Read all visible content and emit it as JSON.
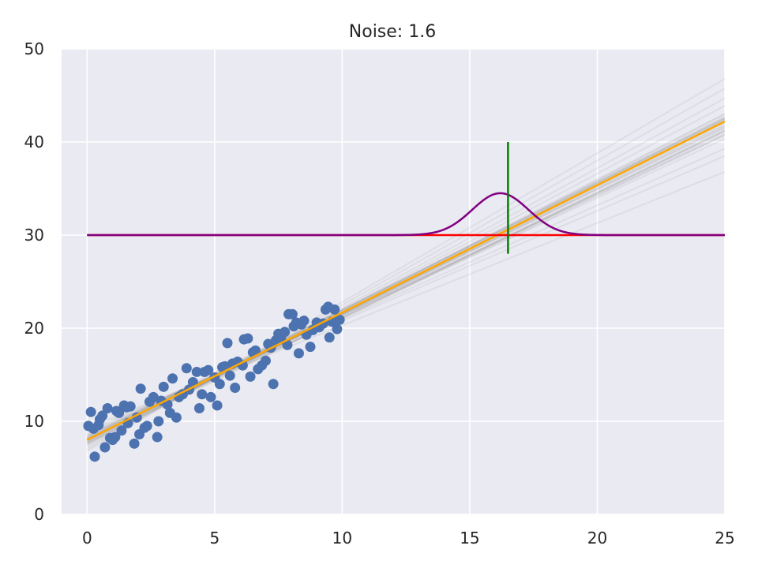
{
  "chart_data": {
    "type": "scatter",
    "title": "Noise: 1.6",
    "xlabel": "",
    "ylabel": "",
    "xlim": [
      -1,
      25
    ],
    "ylim": [
      0,
      50
    ],
    "x_ticks": [
      0,
      5,
      10,
      15,
      20,
      25
    ],
    "y_ticks": [
      0,
      10,
      20,
      30,
      40,
      50
    ],
    "grid": true,
    "colors": {
      "background": "#eaeaf2",
      "grid": "#ffffff",
      "points": "#4c72b0",
      "fit": "#ffa500",
      "samples": "#808080",
      "threshold": "#ff0000",
      "marker": "#008000",
      "density": "#800080"
    },
    "points": [
      [
        0.05,
        9.5
      ],
      [
        0.15,
        11.0
      ],
      [
        0.25,
        9.2
      ],
      [
        0.3,
        6.2
      ],
      [
        0.45,
        9.6
      ],
      [
        0.5,
        10.2
      ],
      [
        0.6,
        10.6
      ],
      [
        0.7,
        7.2
      ],
      [
        0.8,
        11.4
      ],
      [
        0.9,
        8.2
      ],
      [
        1.0,
        8.0
      ],
      [
        1.1,
        8.3
      ],
      [
        1.15,
        11.1
      ],
      [
        1.25,
        10.9
      ],
      [
        1.35,
        9.0
      ],
      [
        1.45,
        11.7
      ],
      [
        1.55,
        11.5
      ],
      [
        1.6,
        9.8
      ],
      [
        1.7,
        11.6
      ],
      [
        1.85,
        7.6
      ],
      [
        1.95,
        10.4
      ],
      [
        2.05,
        8.6
      ],
      [
        2.1,
        13.5
      ],
      [
        2.25,
        9.3
      ],
      [
        2.35,
        9.5
      ],
      [
        2.45,
        12.1
      ],
      [
        2.6,
        12.6
      ],
      [
        2.75,
        8.3
      ],
      [
        2.8,
        10.0
      ],
      [
        2.9,
        12.2
      ],
      [
        3.0,
        13.7
      ],
      [
        3.15,
        11.8
      ],
      [
        3.25,
        10.9
      ],
      [
        3.35,
        14.6
      ],
      [
        3.5,
        10.4
      ],
      [
        3.6,
        12.6
      ],
      [
        3.75,
        12.9
      ],
      [
        3.9,
        15.7
      ],
      [
        4.0,
        13.4
      ],
      [
        4.15,
        14.2
      ],
      [
        4.3,
        15.3
      ],
      [
        4.4,
        11.4
      ],
      [
        4.5,
        12.9
      ],
      [
        4.6,
        15.3
      ],
      [
        4.75,
        15.5
      ],
      [
        4.85,
        12.6
      ],
      [
        5.0,
        14.7
      ],
      [
        5.1,
        11.7
      ],
      [
        5.2,
        14.0
      ],
      [
        5.3,
        15.8
      ],
      [
        5.4,
        15.9
      ],
      [
        5.5,
        18.4
      ],
      [
        5.6,
        14.9
      ],
      [
        5.7,
        16.2
      ],
      [
        5.8,
        13.6
      ],
      [
        5.9,
        16.4
      ],
      [
        6.1,
        16.0
      ],
      [
        6.15,
        18.8
      ],
      [
        6.3,
        18.9
      ],
      [
        6.4,
        14.8
      ],
      [
        6.5,
        17.4
      ],
      [
        6.6,
        17.6
      ],
      [
        6.7,
        15.6
      ],
      [
        6.85,
        16.0
      ],
      [
        7.0,
        16.5
      ],
      [
        7.1,
        18.3
      ],
      [
        7.2,
        17.9
      ],
      [
        7.3,
        14.0
      ],
      [
        7.4,
        18.7
      ],
      [
        7.5,
        19.4
      ],
      [
        7.6,
        19.0
      ],
      [
        7.75,
        19.6
      ],
      [
        7.85,
        18.2
      ],
      [
        7.9,
        21.5
      ],
      [
        8.05,
        21.5
      ],
      [
        8.1,
        20.2
      ],
      [
        8.2,
        20.6
      ],
      [
        8.3,
        17.3
      ],
      [
        8.4,
        20.4
      ],
      [
        8.5,
        20.8
      ],
      [
        8.6,
        19.3
      ],
      [
        8.75,
        18.0
      ],
      [
        8.85,
        19.8
      ],
      [
        9.0,
        20.6
      ],
      [
        9.1,
        20.1
      ],
      [
        9.25,
        20.5
      ],
      [
        9.35,
        22.0
      ],
      [
        9.45,
        22.3
      ],
      [
        9.5,
        19.0
      ],
      [
        9.6,
        20.7
      ],
      [
        9.7,
        22.0
      ],
      [
        9.8,
        19.9
      ],
      [
        9.9,
        20.9
      ]
    ],
    "fit_line": {
      "x": [
        0,
        25
      ],
      "y": [
        8.0,
        42.2
      ]
    },
    "sample_lines": [
      [
        8.4,
        1.3
      ],
      [
        7.6,
        1.4
      ],
      [
        8.1,
        1.34
      ],
      [
        7.9,
        1.38
      ],
      [
        8.2,
        1.36
      ],
      [
        7.8,
        1.37
      ],
      [
        8.3,
        1.33
      ],
      [
        7.7,
        1.39
      ],
      [
        8.0,
        1.35
      ],
      [
        8.5,
        1.29
      ],
      [
        7.5,
        1.42
      ],
      [
        8.1,
        1.38
      ],
      [
        7.9,
        1.33
      ],
      [
        8.6,
        1.27
      ],
      [
        7.4,
        1.46
      ],
      [
        8.8,
        1.22
      ],
      [
        7.2,
        1.5
      ],
      [
        9.0,
        1.18
      ],
      [
        7.0,
        1.55
      ],
      [
        8.2,
        1.32
      ],
      [
        7.8,
        1.41
      ],
      [
        8.4,
        1.36
      ],
      [
        7.6,
        1.35
      ],
      [
        8.0,
        1.31
      ],
      [
        8.0,
        1.39
      ],
      [
        9.3,
        1.1
      ],
      [
        6.8,
        1.6
      ],
      [
        8.3,
        1.37
      ],
      [
        7.7,
        1.34
      ],
      [
        8.1,
        1.35
      ]
    ],
    "threshold": {
      "y": 30,
      "x": [
        0,
        25
      ]
    },
    "marker": {
      "x": 16.5,
      "y": [
        28.0,
        40.0
      ]
    },
    "density_curve": {
      "mean": 16.2,
      "std": 1.1,
      "base_y": 30,
      "peak_height": 4.5,
      "x_range": [
        0,
        25
      ]
    }
  }
}
